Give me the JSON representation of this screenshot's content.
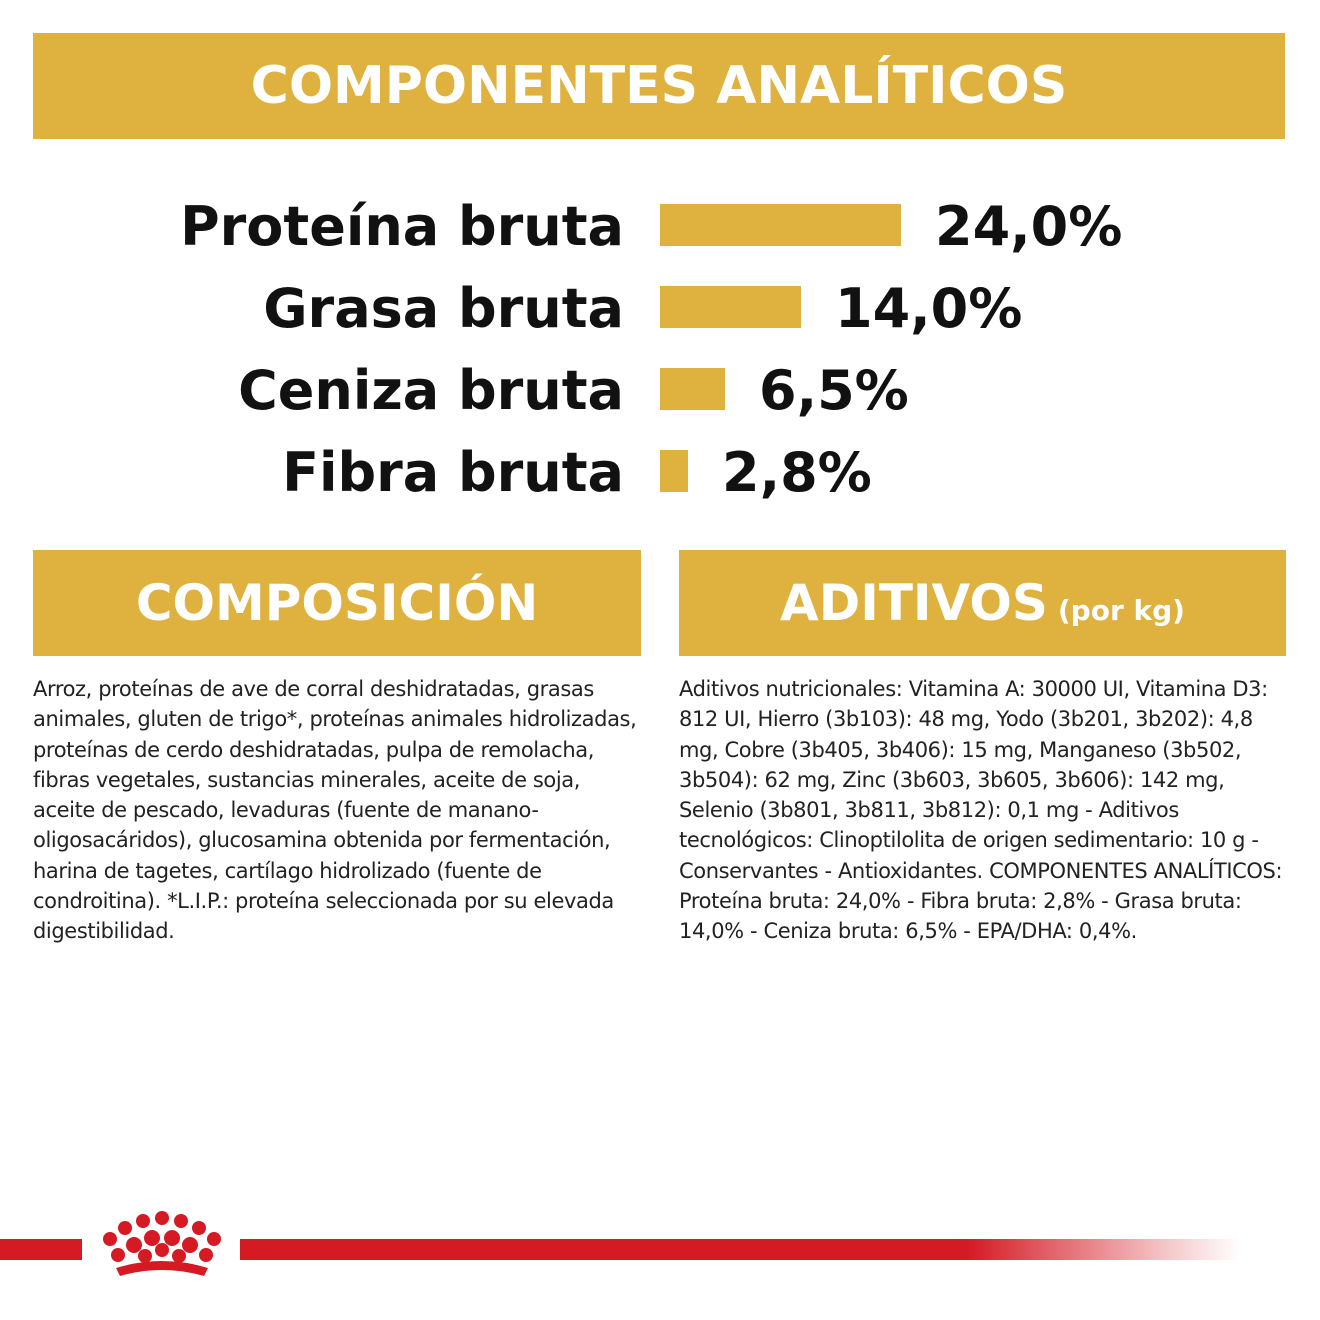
{
  "analytical_header": "COMPONENTES ANALÍTICOS",
  "nutrients": [
    {
      "label": "Proteína bruta",
      "value": "24,0%",
      "percent": 24.0
    },
    {
      "label": "Grasa bruta",
      "value": "14,0%",
      "percent": 14.0
    },
    {
      "label": "Ceniza bruta",
      "value": "6,5%",
      "percent": 6.5
    },
    {
      "label": "Fibra bruta",
      "value": "2,8%",
      "percent": 2.8
    }
  ],
  "composition": {
    "header": "COMPOSICIÓN",
    "text": "Arroz, proteínas de ave de corral deshidratadas, grasas animales, gluten de trigo*, proteínas animales hidrolizadas, proteínas de cerdo deshidratadas, pulpa de remolacha, fibras vegetales, sustancias minerales, aceite de soja, aceite de pescado, levaduras (fuente de manano-oligosacáridos), glucosamina obtenida por fermentación, harina de tagetes, cartílago hidrolizado (fuente de condroitina). *L.I.P.: proteína seleccionada por su elevada digestibilidad."
  },
  "additives": {
    "header": "ADITIVOS",
    "header_suffix": "(por kg)",
    "text": "Aditivos nutricionales: Vitamina A: 30000 UI, Vitamina D3: 812 UI, Hierro (3b103): 48 mg, Yodo (3b201, 3b202): 4,8 mg, Cobre (3b405, 3b406): 15 mg, Manganeso (3b502, 3b504): 62 mg, Zinc (3b603, 3b605, 3b606): 142 mg, Selenio (3b801, 3b811, 3b812): 0,1 mg - Aditivos tecnológicos: Clinoptilolita de origen sedimentario: 10 g - Conservantes - Antioxidantes. COMPONENTES ANALÍTICOS: Proteína bruta: 24,0% - Fibra bruta: 2,8% - Grasa bruta: 14,0% - Ceniza bruta: 6,5% - EPA/DHA: 0,4%."
  },
  "colors": {
    "accent_gold": "#dfb13e",
    "brand_red": "#d51a24",
    "text": "#111111"
  },
  "icons": {
    "brand_logo": "crown-icon"
  }
}
